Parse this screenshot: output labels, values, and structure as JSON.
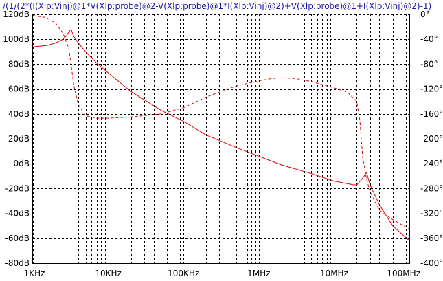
{
  "window": {
    "trace_expression": "/(1/(2*(I(Xlp:Vinj)@1*V(Xlp:probe)@2-V(Xlp:probe)@1*I(Xlp:Vinj)@2)+V(Xlp:probe)@1+I(Xlp:Vinj)@2)-1)"
  },
  "colors": {
    "background": "#ffffff",
    "grid": "#000000",
    "trace": "#e00000",
    "title": "#1a1aa8"
  },
  "chart_data": {
    "type": "line",
    "title": "/(1/(2*(I(Xlp:Vinj)@1*V(Xlp:probe)@2-V(Xlp:probe)@1*I(Xlp:Vinj)@2)+V(Xlp:probe)@1+I(Xlp:Vinj)@2)-1)",
    "x_scale": "log",
    "x_unit": "Hz",
    "xlim": [
      1000,
      100000000
    ],
    "x_tick_labels": [
      "1KHz",
      "10KHz",
      "100KHz",
      "1MHz",
      "10MHz",
      "100MHz"
    ],
    "y_left": {
      "unit": "dB",
      "ylim": [
        -80,
        120
      ],
      "tick_labels": [
        "120dB",
        "100dB",
        "80dB",
        "60dB",
        "40dB",
        "20dB",
        "0dB",
        "-20dB",
        "-40dB",
        "-60dB",
        "-80dB"
      ]
    },
    "y_right": {
      "unit": "°",
      "ylim": [
        -400,
        0
      ],
      "tick_labels": [
        "0°",
        "-40°",
        "-80°",
        "-120°",
        "-160°",
        "-200°",
        "-240°",
        "-280°",
        "-320°",
        "-360°",
        "-400°"
      ]
    },
    "grid": true,
    "series": [
      {
        "kind": "magnitude",
        "axis": "left",
        "style": "solid",
        "color": "#e00000",
        "x": [
          1000,
          1500,
          2000,
          2500,
          2800,
          3000,
          3200,
          3500,
          4000,
          5000,
          7000,
          10000,
          20000,
          50000,
          100000,
          200000,
          500000,
          1000000,
          2000000,
          5000000,
          10000000,
          15000000,
          18000000,
          20000000,
          23000000,
          25000000,
          27000000,
          30000000,
          40000000,
          60000000,
          100000000
        ],
        "y": [
          94,
          95,
          97,
          100,
          103,
          106,
          108,
          102,
          97,
          90,
          81,
          73,
          58,
          43,
          34,
          23,
          13,
          6,
          -1,
          -8,
          -14,
          -16,
          -17,
          -17,
          -13,
          -10,
          -7,
          -17,
          -33,
          -50,
          -62
        ]
      },
      {
        "kind": "phase",
        "axis": "right",
        "style": "dashed",
        "color": "#e00000",
        "x": [
          1000,
          1500,
          2000,
          2500,
          3000,
          3200,
          3500,
          4000,
          5000,
          7000,
          10000,
          20000,
          50000,
          100000,
          200000,
          500000,
          1000000,
          1500000,
          2000000,
          3000000,
          5000000,
          10000000,
          15000000,
          20000000,
          22000000,
          24000000,
          27000000,
          30000000,
          40000000,
          60000000,
          100000000
        ],
        "y": [
          -2,
          -5,
          -14,
          -30,
          -55,
          -80,
          -115,
          -145,
          -163,
          -167,
          -167,
          -165,
          -160,
          -150,
          -133,
          -115,
          -107,
          -103,
          -102,
          -103,
          -108,
          -118,
          -125,
          -140,
          -170,
          -230,
          -265,
          -285,
          -315,
          -330,
          -345
        ]
      }
    ]
  }
}
